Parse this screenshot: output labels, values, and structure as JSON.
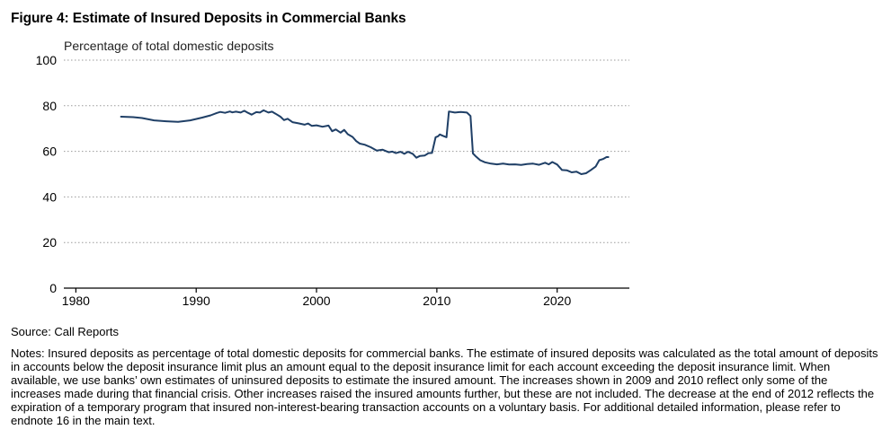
{
  "figure": {
    "title": "Figure 4: Estimate of Insured Deposits in Commercial Banks",
    "source": "Source: Call Reports",
    "notes": "Notes: Insured deposits as percentage of total domestic deposits for commercial banks. The estimate of insured deposits was calculated as the total amount of deposits in accounts below the deposit insurance limit plus an amount equal to the deposit insurance limit for each account exceeding the deposit insurance limit. When available, we use banks’ own estimates of uninsured deposits to estimate the insured amount. The increases shown in 2009 and 2010 reflect only some of the increases made during that financial crisis. Other increases raised the insured amounts further, but these are not included. The decrease at the end of 2012 reflects the expiration of a temporary program that insured non-interest-bearing transaction accounts on a voluntary basis. For additional detailed information, please refer to endnote 16 in the main text."
  },
  "colors": {
    "line": "#1f3f66",
    "grid": "#9a9a9a",
    "axis": "#000000"
  },
  "chart_data": {
    "type": "line",
    "title": "",
    "xlabel": "",
    "ylabel": "Percentage of total domestic deposits",
    "xlim": [
      1979,
      2026
    ],
    "ylim": [
      0,
      100
    ],
    "x_ticks": [
      1980,
      1990,
      2000,
      2010,
      2020
    ],
    "y_ticks": [
      0,
      20,
      40,
      60,
      80,
      100
    ],
    "grid": "horizontal dotted",
    "legend": "none",
    "series": [
      {
        "x": [
          1983.75,
          1984.75,
          1985.5,
          1986.5,
          1987.5,
          1988.5,
          1989.5,
          1990.5,
          1991.2,
          1991.7,
          1992.0,
          1992.4,
          1992.8,
          1993.0,
          1993.3,
          1993.7,
          1994.0,
          1994.3,
          1994.6,
          1995.0,
          1995.3,
          1995.6,
          1996.0,
          1996.3,
          1996.6,
          1997.0,
          1997.3,
          1997.6,
          1998.0,
          1998.5,
          1999.0,
          1999.3,
          1999.6,
          2000.0,
          2000.5,
          2001.0,
          2001.3,
          2001.6,
          2002.0,
          2002.3,
          2002.6,
          2003.0,
          2003.3,
          2003.6,
          2004.0,
          2004.5,
          2005.0,
          2005.5,
          2006.0,
          2006.3,
          2006.6,
          2007.0,
          2007.3,
          2007.6,
          2008.0,
          2008.3,
          2008.6,
          2009.0,
          2009.25,
          2009.3,
          2009.6,
          2009.9,
          2010.1,
          2010.25,
          2010.5,
          2010.8,
          2011.0,
          2011.5,
          2012.0,
          2012.5,
          2012.8,
          2013.0,
          2013.2,
          2013.6,
          2014.0,
          2014.5,
          2015.0,
          2015.5,
          2016.0,
          2016.5,
          2017.0,
          2017.5,
          2018.0,
          2018.5,
          2019.0,
          2019.3,
          2019.6,
          2020.0,
          2020.4,
          2020.8,
          2021.2,
          2021.6,
          2022.0,
          2022.4,
          2022.8,
          2023.2,
          2023.5,
          2023.8,
          2024.1,
          2024.25
        ],
        "values": [
          75.2,
          75.0,
          74.6,
          73.6,
          73.2,
          72.9,
          73.6,
          74.8,
          75.8,
          76.8,
          77.3,
          76.9,
          77.5,
          77.1,
          77.4,
          77.0,
          77.8,
          76.9,
          76.1,
          77.2,
          77.0,
          78.0,
          77.0,
          77.4,
          76.5,
          75.2,
          73.7,
          74.3,
          72.8,
          72.3,
          71.7,
          72.2,
          71.2,
          71.4,
          70.8,
          71.3,
          68.8,
          69.6,
          68.2,
          69.4,
          67.5,
          66.3,
          64.5,
          63.4,
          62.9,
          61.8,
          60.3,
          60.7,
          59.6,
          59.9,
          59.2,
          59.8,
          58.9,
          59.8,
          58.9,
          57.2,
          58.0,
          58.2,
          59.0,
          59.2,
          59.3,
          66.2,
          66.6,
          67.4,
          66.8,
          66.2,
          77.5,
          77.0,
          77.3,
          77.0,
          75.5,
          59.1,
          58.0,
          56.1,
          55.2,
          54.6,
          54.3,
          54.6,
          54.2,
          54.3,
          54.0,
          54.4,
          54.6,
          54.1,
          55.0,
          54.3,
          55.3,
          54.2,
          51.8,
          51.7,
          50.8,
          51.1,
          50.0,
          50.4,
          51.8,
          53.3,
          56.1,
          56.6,
          57.5,
          57.5
        ]
      }
    ]
  }
}
